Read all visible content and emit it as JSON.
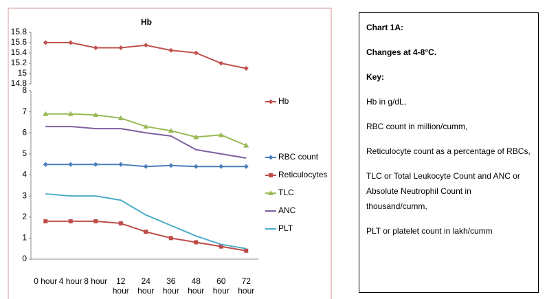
{
  "chart_data": [
    {
      "type": "line",
      "title": "Hb",
      "ylim": [
        14.8,
        15.8
      ],
      "yticks": [
        14.8,
        15,
        15.2,
        15.4,
        15.6,
        15.8
      ],
      "series": [
        {
          "name": "Hb",
          "color": "#c0504d",
          "marker": "diamond",
          "values": [
            15.6,
            15.6,
            15.5,
            15.5,
            15.55,
            15.45,
            15.4,
            15.2,
            15.1
          ]
        }
      ]
    },
    {
      "type": "line",
      "ylim": [
        0,
        8
      ],
      "yticks": [
        0,
        1,
        2,
        3,
        4,
        5,
        6,
        7,
        8
      ],
      "categories": [
        "0 hour",
        "4 hour",
        "8 hour",
        "12 hour",
        "24 hour",
        "36 hour",
        "48 hour",
        "60 hour",
        "72 hour"
      ],
      "series": [
        {
          "name": "RBC count",
          "color": "#4a7ebb",
          "marker": "diamond",
          "values": [
            4.5,
            4.5,
            4.5,
            4.5,
            4.4,
            4.45,
            4.4,
            4.4,
            4.4
          ]
        },
        {
          "name": "Reticulocytes",
          "color": "#be4b48",
          "marker": "square",
          "values": [
            1.8,
            1.8,
            1.8,
            1.7,
            1.3,
            1.0,
            0.8,
            0.6,
            0.4
          ]
        },
        {
          "name": "TLC",
          "color": "#98b954",
          "marker": "triangle",
          "values": [
            6.9,
            6.9,
            6.85,
            6.7,
            6.3,
            6.1,
            5.8,
            5.9,
            5.4
          ]
        },
        {
          "name": "ANC",
          "color": "#7d60a0",
          "marker": "none",
          "values": [
            6.3,
            6.3,
            6.2,
            6.2,
            6.0,
            5.85,
            5.2,
            5.0,
            4.8
          ]
        },
        {
          "name": "PLT",
          "color": "#4bacc6",
          "marker": "none",
          "values": [
            3.1,
            3.0,
            3.0,
            2.8,
            2.1,
            1.6,
            1.1,
            0.7,
            0.5
          ]
        }
      ]
    }
  ],
  "key_box": {
    "lines": [
      "Chart 1A:",
      "Changes at 4-8°C.",
      "Key:",
      "Hb in g/dL,",
      "RBC count in million/cumm,",
      "Reticulocyte count as a percentage of RBCs,",
      "TLC or Total Leukocyte Count and ANC or Absolute Neutrophil Count in thousand/cumm,",
      "PLT or platelet count in lakh/cumm"
    ]
  }
}
